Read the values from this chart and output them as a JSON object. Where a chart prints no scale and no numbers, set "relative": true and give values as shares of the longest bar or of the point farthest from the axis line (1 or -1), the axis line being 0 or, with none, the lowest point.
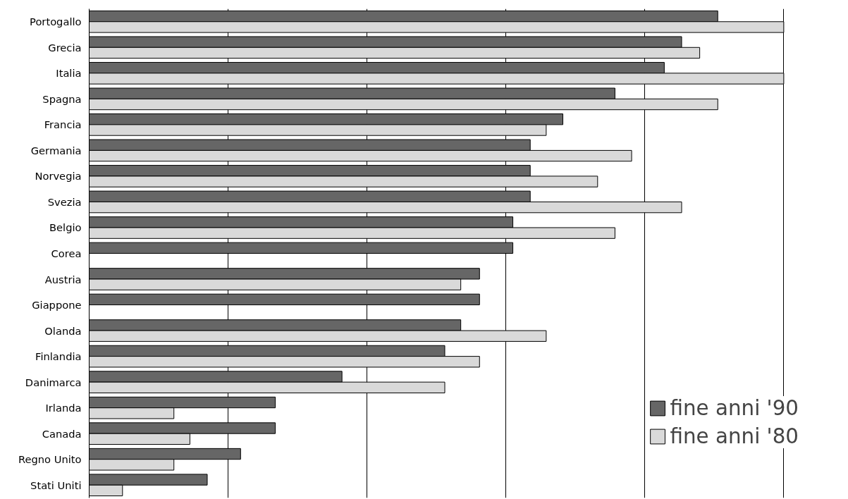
{
  "chart_data": {
    "type": "bar",
    "orientation": "horizontal",
    "relative": true,
    "categories": [
      "Portogallo",
      "Grecia",
      "Italia",
      "Spagna",
      "Francia",
      "Germania",
      "Norvegia",
      "Svezia",
      "Belgio",
      "Corea",
      "Austria",
      "Giappone",
      "Olanda",
      "Finlandia",
      "Danimarca",
      "Irlanda",
      "Canada",
      "Regno Unito",
      "Stati Uniti"
    ],
    "series": [
      {
        "name": "fine anni '90",
        "color": "#666666",
        "values": [
          0.905,
          0.853,
          0.828,
          0.757,
          0.682,
          0.635,
          0.635,
          0.635,
          0.61,
          0.61,
          0.562,
          0.562,
          0.535,
          0.512,
          0.364,
          0.268,
          0.268,
          0.218,
          0.17
        ]
      },
      {
        "name": "fine anni '80",
        "color": "#d9d9d9",
        "values": [
          1,
          0.879,
          1,
          0.905,
          0.658,
          0.781,
          0.732,
          0.853,
          0.757,
          null,
          0.535,
          null,
          0.658,
          0.562,
          0.512,
          0.122,
          0.145,
          0.122,
          0.048
        ]
      }
    ],
    "grid": "x",
    "legend": "bottom right"
  }
}
